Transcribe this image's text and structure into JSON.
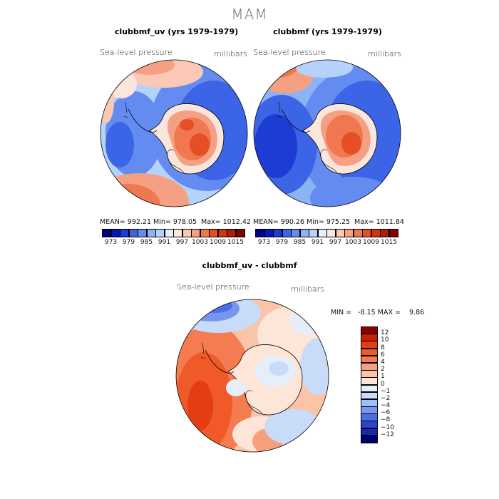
{
  "season": "MAM",
  "panels": [
    {
      "title": "clubbmf_uv (yrs 1979-1979)",
      "variable_label": "Sea-level pressure",
      "units_label": "millibars",
      "stats": {
        "mean": "MEAN= 992.21",
        "min": "Min= 978.05",
        "max": "Max= 1012.42"
      }
    },
    {
      "title": "clubbmf (yrs 1979-1979)",
      "variable_label": "Sea-level pressure",
      "units_label": "millibars",
      "stats": {
        "mean": "MEAN= 990.26",
        "min": "Min= 975.25",
        "max": "Max= 1011.84"
      }
    }
  ],
  "shared_colorbar": {
    "tick_labels": [
      "973",
      "979",
      "985",
      "991",
      "997",
      "1003",
      "1009",
      "1015"
    ],
    "colors": [
      "#00008b",
      "#0a14b4",
      "#1e3cd2",
      "#3c64e6",
      "#648cf0",
      "#8cb4f5",
      "#b4d2fa",
      "#e6eefa",
      "#fae6dc",
      "#fac8b4",
      "#f5a082",
      "#f07850",
      "#e64e28",
      "#d23214",
      "#aa1e0a",
      "#820000"
    ]
  },
  "difference_panel": {
    "title": "clubbmf_uv - clubbmf",
    "variable_label": "Sea-level pressure",
    "units_label": "millibars",
    "minmax": "MIN =   -8.15 MAX =    9.86",
    "colorbar_labels": [
      "12",
      "10",
      "8",
      "6",
      "4",
      "2",
      "1",
      "0",
      "−1",
      "−2",
      "−4",
      "−6",
      "−8",
      "−10",
      "−12"
    ],
    "colors": [
      "#8b0000",
      "#c81e0a",
      "#e63c14",
      "#f05a28",
      "#f57c50",
      "#f8a07c",
      "#fac4a8",
      "#fde6d8",
      "#e6eefa",
      "#c8dcfa",
      "#a0c0f5",
      "#7896f0",
      "#4b6ee6",
      "#2846d2",
      "#1428b4",
      "#000078"
    ]
  }
}
